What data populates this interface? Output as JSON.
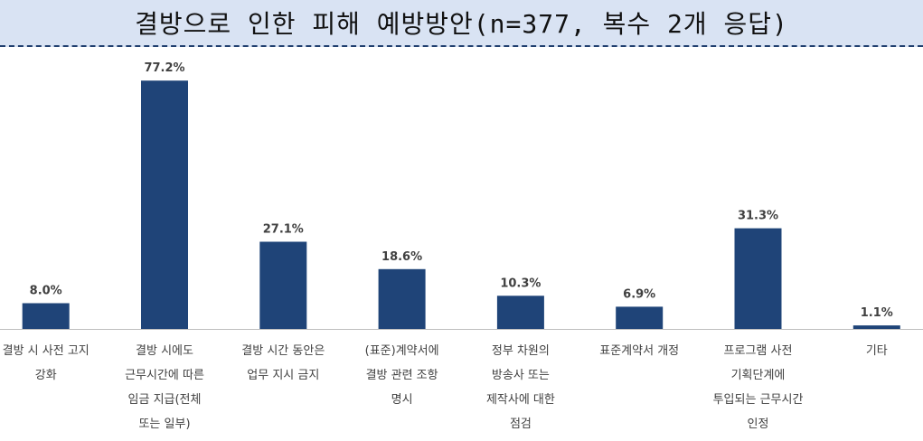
{
  "title": "결방으로 인한 피해 예방방안(n=377, 복수 2개 응답)",
  "colors": {
    "bar": "#1f4478",
    "title_bg": "#d9e3f3",
    "baseline": "#bfbfbf",
    "text": "#404040"
  },
  "chart_data": {
    "type": "bar",
    "title": "결방으로 인한 피해 예방방안(n=377, 복수 2개 응답)",
    "categories": [
      [
        "결방 시 사전 고지",
        "강화"
      ],
      [
        "결방 시에도",
        "근무시간에 따른",
        "임금 지급(전체",
        "또는 일부)"
      ],
      [
        "결방 시간 동안은",
        "업무 지시 금지"
      ],
      [
        "(표준)계약서에",
        "결방 관련 조항",
        "명시"
      ],
      [
        "정부 차원의",
        "방송사 또는",
        "제작사에 대한",
        "점검"
      ],
      [
        "표준계약서 개정"
      ],
      [
        "프로그램 사전",
        "기획단계에",
        "투입되는 근무시간",
        "인정"
      ],
      [
        "기타"
      ]
    ],
    "values": [
      8.0,
      77.2,
      27.1,
      18.6,
      10.3,
      6.9,
      31.3,
      1.1
    ],
    "value_labels": [
      "8.0%",
      "77.2%",
      "27.1%",
      "18.6%",
      "10.3%",
      "6.9%",
      "31.3%",
      "1.1%"
    ],
    "ylim": [
      0,
      80
    ],
    "grid": false,
    "legend": "none"
  }
}
